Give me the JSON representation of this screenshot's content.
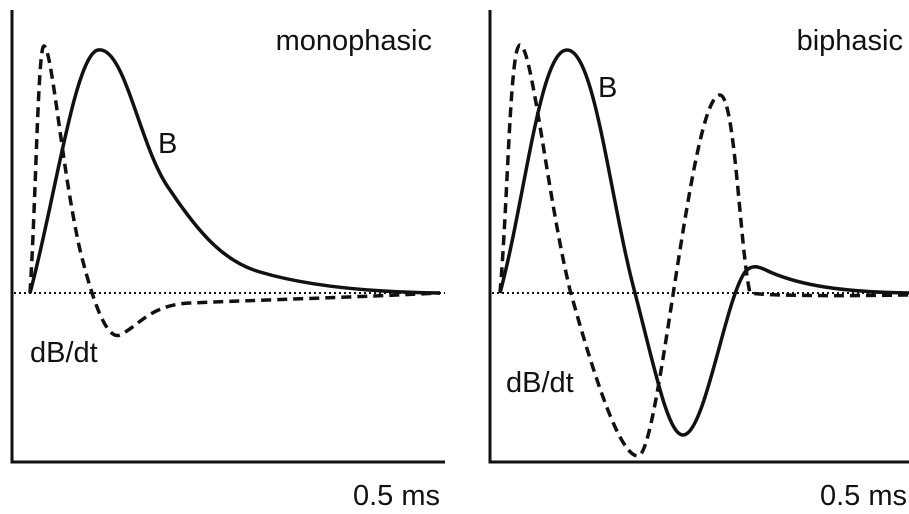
{
  "panels": [
    {
      "title": "monophasic",
      "field_label": "B",
      "derivative_label": "dB/dt",
      "time_label": "0.5 ms"
    },
    {
      "title": "biphasic",
      "field_label": "B",
      "derivative_label": "dB/dt",
      "time_label": "0.5 ms"
    }
  ]
}
